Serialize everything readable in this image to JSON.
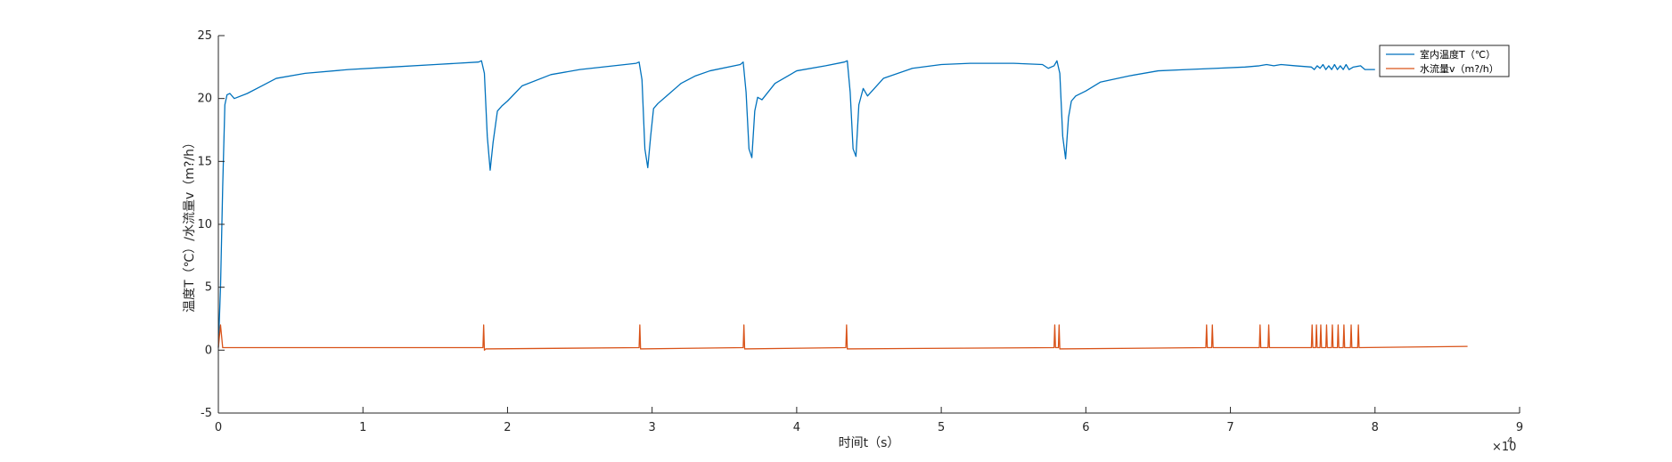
{
  "chart_data": {
    "type": "line",
    "title": "",
    "xlabel": "时间t（s）",
    "ylabel": "温度T（℃）/水流量v（m?/h）",
    "x_exponent_label": "×10",
    "x_exponent_power": "4",
    "xlim": [
      0,
      90000
    ],
    "ylim": [
      -5,
      25
    ],
    "xticks": [
      0,
      10000,
      20000,
      30000,
      40000,
      50000,
      60000,
      70000,
      80000,
      90000
    ],
    "xtick_labels": [
      "0",
      "1",
      "2",
      "3",
      "4",
      "5",
      "6",
      "7",
      "8",
      "9"
    ],
    "yticks": [
      -5,
      0,
      5,
      10,
      15,
      20,
      25
    ],
    "ytick_labels": [
      "-5",
      "0",
      "5",
      "10",
      "15",
      "20",
      "25"
    ],
    "grid": false,
    "legend_position": "top-right",
    "colors": {
      "series1": "#0072BD",
      "series2": "#D95319",
      "axis": "#262626"
    },
    "series": [
      {
        "name": "室内温度T（℃）",
        "points": [
          [
            0,
            0.2
          ],
          [
            150,
            5
          ],
          [
            300,
            13
          ],
          [
            450,
            19.5
          ],
          [
            600,
            20.3
          ],
          [
            800,
            20.4
          ],
          [
            1100,
            20.0
          ],
          [
            2000,
            20.4
          ],
          [
            3000,
            21.0
          ],
          [
            4000,
            21.6
          ],
          [
            6000,
            22.0
          ],
          [
            9000,
            22.3
          ],
          [
            12000,
            22.5
          ],
          [
            15000,
            22.7
          ],
          [
            18000,
            22.9
          ],
          [
            18200,
            23.0
          ],
          [
            18400,
            22.0
          ],
          [
            18600,
            17.0
          ],
          [
            18800,
            14.3
          ],
          [
            19000,
            16.5
          ],
          [
            19300,
            19.0
          ],
          [
            19600,
            19.4
          ],
          [
            20000,
            19.8
          ],
          [
            21000,
            21.0
          ],
          [
            23000,
            21.9
          ],
          [
            25000,
            22.3
          ],
          [
            28900,
            22.8
          ],
          [
            29100,
            22.9
          ],
          [
            29300,
            21.5
          ],
          [
            29500,
            16.0
          ],
          [
            29700,
            14.5
          ],
          [
            29900,
            17.0
          ],
          [
            30100,
            19.2
          ],
          [
            30400,
            19.6
          ],
          [
            31000,
            20.2
          ],
          [
            32000,
            21.2
          ],
          [
            33000,
            21.8
          ],
          [
            34000,
            22.2
          ],
          [
            36100,
            22.7
          ],
          [
            36300,
            22.9
          ],
          [
            36500,
            20.5
          ],
          [
            36700,
            16.0
          ],
          [
            36900,
            15.3
          ],
          [
            37100,
            19.0
          ],
          [
            37300,
            20.1
          ],
          [
            37600,
            19.9
          ],
          [
            38500,
            21.2
          ],
          [
            40000,
            22.2
          ],
          [
            42000,
            22.6
          ],
          [
            43300,
            22.9
          ],
          [
            43500,
            23.0
          ],
          [
            43700,
            20.5
          ],
          [
            43900,
            16.0
          ],
          [
            44100,
            15.4
          ],
          [
            44300,
            19.5
          ],
          [
            44600,
            20.8
          ],
          [
            44900,
            20.2
          ],
          [
            46000,
            21.6
          ],
          [
            48000,
            22.4
          ],
          [
            50000,
            22.7
          ],
          [
            52000,
            22.8
          ],
          [
            55000,
            22.8
          ],
          [
            57000,
            22.7
          ],
          [
            57400,
            22.4
          ],
          [
            57800,
            22.6
          ],
          [
            58000,
            23.0
          ],
          [
            58200,
            22.0
          ],
          [
            58400,
            17.0
          ],
          [
            58600,
            15.2
          ],
          [
            58800,
            18.5
          ],
          [
            59000,
            19.8
          ],
          [
            59300,
            20.2
          ],
          [
            60000,
            20.6
          ],
          [
            61000,
            21.3
          ],
          [
            63000,
            21.8
          ],
          [
            65000,
            22.2
          ],
          [
            67000,
            22.3
          ],
          [
            69000,
            22.4
          ],
          [
            71000,
            22.5
          ],
          [
            72000,
            22.6
          ],
          [
            72500,
            22.7
          ],
          [
            73000,
            22.6
          ],
          [
            73500,
            22.7
          ],
          [
            74500,
            22.6
          ],
          [
            75600,
            22.5
          ],
          [
            75800,
            22.3
          ],
          [
            76000,
            22.6
          ],
          [
            76200,
            22.4
          ],
          [
            76400,
            22.7
          ],
          [
            76600,
            22.3
          ],
          [
            76800,
            22.6
          ],
          [
            77000,
            22.3
          ],
          [
            77200,
            22.7
          ],
          [
            77400,
            22.3
          ],
          [
            77600,
            22.6
          ],
          [
            77800,
            22.3
          ],
          [
            78000,
            22.7
          ],
          [
            78200,
            22.3
          ],
          [
            78500,
            22.5
          ],
          [
            79000,
            22.6
          ],
          [
            79300,
            22.3
          ],
          [
            80000,
            22.3
          ]
        ]
      },
      {
        "name": "水流量v（m?/h）",
        "points": [
          [
            0,
            0.2
          ],
          [
            150,
            2.0
          ],
          [
            300,
            0.2
          ],
          [
            18000,
            0.2
          ],
          [
            18300,
            0.2
          ],
          [
            18350,
            2.0
          ],
          [
            18400,
            0.0
          ],
          [
            18500,
            0.1
          ],
          [
            29100,
            0.2
          ],
          [
            29150,
            2.0
          ],
          [
            29200,
            0.1
          ],
          [
            36300,
            0.2
          ],
          [
            36350,
            2.0
          ],
          [
            36400,
            0.1
          ],
          [
            43400,
            0.2
          ],
          [
            43450,
            2.0
          ],
          [
            43500,
            0.1
          ],
          [
            57800,
            0.2
          ],
          [
            57850,
            2.0
          ],
          [
            57900,
            0.2
          ],
          [
            58100,
            0.2
          ],
          [
            58150,
            2.0
          ],
          [
            58200,
            0.1
          ],
          [
            68300,
            0.2
          ],
          [
            68350,
            2.0
          ],
          [
            68400,
            0.2
          ],
          [
            68700,
            0.2
          ],
          [
            68750,
            2.0
          ],
          [
            68800,
            0.2
          ],
          [
            72000,
            0.2
          ],
          [
            72050,
            2.0
          ],
          [
            72100,
            0.2
          ],
          [
            72600,
            0.2
          ],
          [
            72650,
            2.0
          ],
          [
            72700,
            0.2
          ],
          [
            75600,
            0.2
          ],
          [
            75650,
            2.0
          ],
          [
            75700,
            0.2
          ],
          [
            75900,
            0.2
          ],
          [
            75950,
            2.0
          ],
          [
            76000,
            0.2
          ],
          [
            76200,
            0.2
          ],
          [
            76250,
            2.0
          ],
          [
            76300,
            0.2
          ],
          [
            76600,
            0.2
          ],
          [
            76650,
            2.0
          ],
          [
            76700,
            0.2
          ],
          [
            77000,
            0.2
          ],
          [
            77050,
            2.0
          ],
          [
            77100,
            0.2
          ],
          [
            77400,
            0.2
          ],
          [
            77450,
            2.0
          ],
          [
            77500,
            0.2
          ],
          [
            77800,
            0.2
          ],
          [
            77850,
            2.0
          ],
          [
            77900,
            0.2
          ],
          [
            78300,
            0.2
          ],
          [
            78350,
            2.0
          ],
          [
            78400,
            0.2
          ],
          [
            78800,
            0.2
          ],
          [
            78850,
            2.0
          ],
          [
            78900,
            0.2
          ],
          [
            86400,
            0.3
          ]
        ]
      }
    ]
  }
}
